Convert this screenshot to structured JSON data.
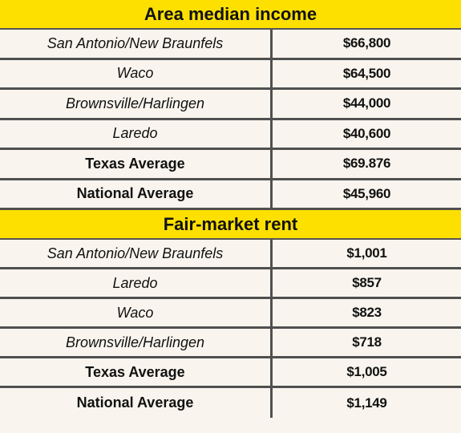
{
  "sections": [
    {
      "title": "Area median income",
      "rows": [
        {
          "name": "San Antonio/New Braunfels",
          "value": "$66,800",
          "style": "italic"
        },
        {
          "name": "Waco",
          "value": "$64,500",
          "style": "italic"
        },
        {
          "name": "Brownsville/Harlingen",
          "value": "$44,000",
          "style": "italic"
        },
        {
          "name": "Laredo",
          "value": "$40,600",
          "style": "italic"
        },
        {
          "name": "Texas Average",
          "value": "$69.876",
          "style": "bold"
        },
        {
          "name": "National Average",
          "value": "$45,960",
          "style": "bold"
        }
      ]
    },
    {
      "title": "Fair-market rent",
      "rows": [
        {
          "name": "San Antonio/New Braunfels",
          "value": "$1,001",
          "style": "italic"
        },
        {
          "name": "Laredo",
          "value": "$857",
          "style": "italic"
        },
        {
          "name": "Waco",
          "value": "$823",
          "style": "italic"
        },
        {
          "name": "Brownsville/Harlingen",
          "value": "$718",
          "style": "italic"
        },
        {
          "name": "Texas Average",
          "value": "$1,005",
          "style": "bold"
        },
        {
          "name": "National Average",
          "value": "$1,149",
          "style": "bold"
        }
      ]
    }
  ],
  "colors": {
    "header_bg": "#fde000",
    "row_bg": "#f9f5ee",
    "grid": "#505050"
  }
}
